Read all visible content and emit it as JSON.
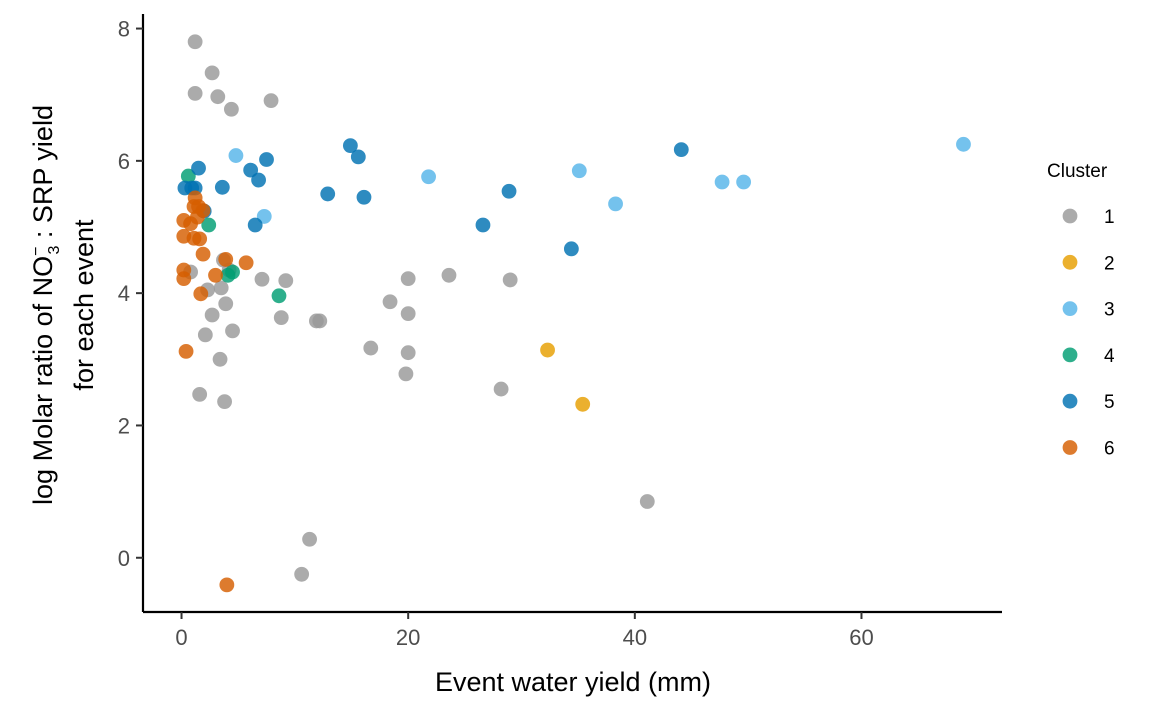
{
  "chart_data": {
    "type": "scatter",
    "title": "",
    "xlabel": "Event water yield (mm)",
    "ylabel_line1": {
      "prefix": "log Molar ratio of NO",
      "sub": "3",
      "sup": "−",
      "suffix": " : SRP yield"
    },
    "ylabel_line2": "for each event",
    "xlim": [
      -3.4,
      72.4
    ],
    "ylim": [
      -0.82,
      8.22
    ],
    "xticks": [
      0,
      20,
      40,
      60
    ],
    "yticks": [
      0,
      2,
      4,
      6,
      8
    ],
    "grid": false,
    "legend": {
      "title": "Cluster",
      "placement": "right",
      "entries": [
        "1",
        "2",
        "3",
        "4",
        "5",
        "6"
      ]
    },
    "series": [
      {
        "name": "1",
        "color": "#999999",
        "points": [
          [
            1.2,
            7.8
          ],
          [
            2.7,
            7.33
          ],
          [
            1.2,
            7.02
          ],
          [
            3.2,
            6.97
          ],
          [
            4.4,
            6.78
          ],
          [
            7.9,
            6.91
          ],
          [
            0.8,
            4.32
          ],
          [
            3.7,
            4.5
          ],
          [
            4.2,
            4.35
          ],
          [
            7.1,
            4.21
          ],
          [
            9.2,
            4.19
          ],
          [
            2.3,
            4.05
          ],
          [
            3.5,
            4.08
          ],
          [
            3.9,
            3.84
          ],
          [
            2.7,
            3.67
          ],
          [
            8.8,
            3.63
          ],
          [
            11.9,
            3.58
          ],
          [
            12.2,
            3.58
          ],
          [
            4.5,
            3.43
          ],
          [
            2.1,
            3.37
          ],
          [
            3.4,
            3.0
          ],
          [
            1.6,
            2.47
          ],
          [
            3.8,
            2.36
          ],
          [
            18.4,
            3.87
          ],
          [
            20.0,
            3.69
          ],
          [
            20.0,
            4.22
          ],
          [
            23.6,
            4.27
          ],
          [
            29.0,
            4.2
          ],
          [
            16.7,
            3.17
          ],
          [
            20.0,
            3.1
          ],
          [
            19.8,
            2.78
          ],
          [
            28.2,
            2.55
          ],
          [
            41.1,
            0.85
          ],
          [
            11.3,
            0.28
          ],
          [
            10.6,
            -0.25
          ]
        ]
      },
      {
        "name": "2",
        "color": "#E69F00",
        "points": [
          [
            32.3,
            3.14
          ],
          [
            35.4,
            2.32
          ]
        ]
      },
      {
        "name": "3",
        "color": "#56B4E9",
        "points": [
          [
            4.8,
            6.08
          ],
          [
            21.8,
            5.76
          ],
          [
            35.1,
            5.85
          ],
          [
            38.3,
            5.35
          ],
          [
            47.7,
            5.68
          ],
          [
            49.6,
            5.68
          ],
          [
            69.0,
            6.25
          ],
          [
            7.3,
            5.16
          ]
        ]
      },
      {
        "name": "4",
        "color": "#009E73",
        "points": [
          [
            0.6,
            5.77
          ],
          [
            2.4,
            5.03
          ],
          [
            4.1,
            4.27
          ],
          [
            4.5,
            4.32
          ],
          [
            8.6,
            3.96
          ]
        ]
      },
      {
        "name": "5",
        "color": "#0072B2",
        "points": [
          [
            1.5,
            5.89
          ],
          [
            0.3,
            5.59
          ],
          [
            0.9,
            5.59
          ],
          [
            1.2,
            5.59
          ],
          [
            3.6,
            5.6
          ],
          [
            2.0,
            5.24
          ],
          [
            6.1,
            5.86
          ],
          [
            6.8,
            5.71
          ],
          [
            7.5,
            6.02
          ],
          [
            6.5,
            5.03
          ],
          [
            14.9,
            6.23
          ],
          [
            15.6,
            6.06
          ],
          [
            12.9,
            5.5
          ],
          [
            16.1,
            5.45
          ],
          [
            26.6,
            5.03
          ],
          [
            28.9,
            5.54
          ],
          [
            34.4,
            4.67
          ],
          [
            44.1,
            6.17
          ]
        ]
      },
      {
        "name": "6",
        "color": "#D55E00",
        "points": [
          [
            1.2,
            5.44
          ],
          [
            1.5,
            5.31
          ],
          [
            1.1,
            5.31
          ],
          [
            1.9,
            5.25
          ],
          [
            0.2,
            5.1
          ],
          [
            0.8,
            5.05
          ],
          [
            1.4,
            5.15
          ],
          [
            0.2,
            4.86
          ],
          [
            1.1,
            4.83
          ],
          [
            1.6,
            4.82
          ],
          [
            1.9,
            4.59
          ],
          [
            0.2,
            4.35
          ],
          [
            0.2,
            4.22
          ],
          [
            3.0,
            4.27
          ],
          [
            3.9,
            4.51
          ],
          [
            5.7,
            4.46
          ],
          [
            1.7,
            3.99
          ],
          [
            0.4,
            3.12
          ],
          [
            4.0,
            -0.41
          ]
        ]
      }
    ]
  }
}
